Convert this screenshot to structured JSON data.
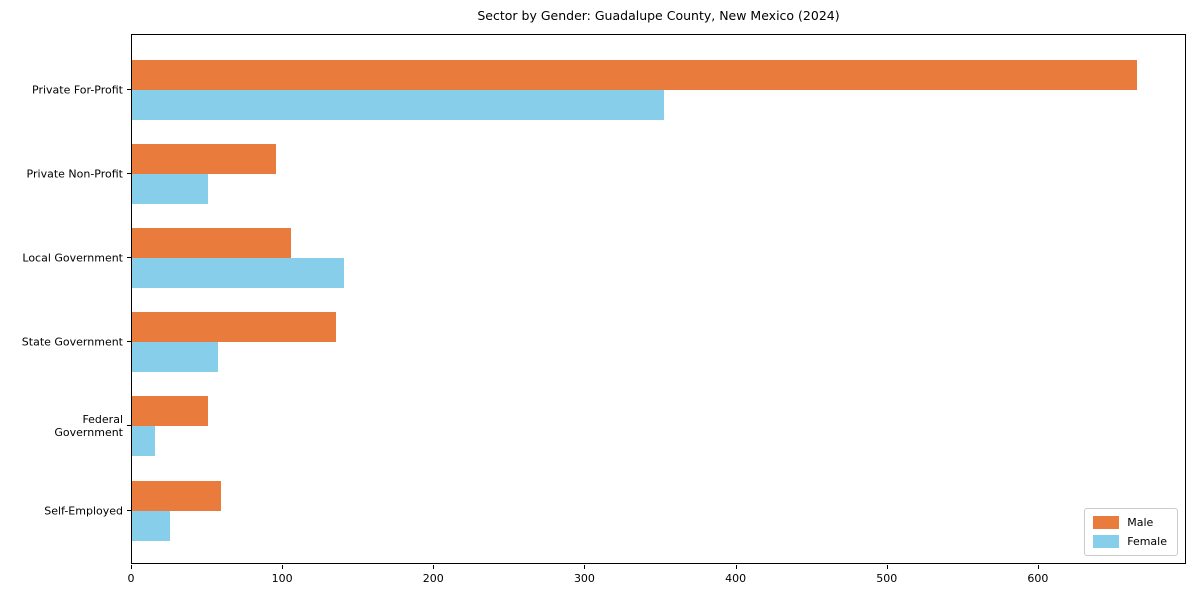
{
  "chart_data": {
    "type": "bar",
    "orientation": "horizontal",
    "title": "Sector by Gender: Guadalupe County, New Mexico (2024)",
    "categories": [
      "Private For-Profit",
      "Private Non-Profit",
      "Local Government",
      "State Government",
      "Federal Government",
      "Self-Employed"
    ],
    "series": [
      {
        "name": "Male",
        "color": "#E97C3C",
        "values": [
          665,
          95,
          105,
          135,
          50,
          59
        ]
      },
      {
        "name": "Female",
        "color": "#87CEEB",
        "values": [
          352,
          50,
          140,
          57,
          15,
          25
        ]
      }
    ],
    "xlabel": "",
    "ylabel": "",
    "x_ticks": [
      0,
      100,
      200,
      300,
      400,
      500,
      600
    ],
    "xlim": [
      0,
      698
    ],
    "grid": false,
    "legend_position": "lower right"
  }
}
